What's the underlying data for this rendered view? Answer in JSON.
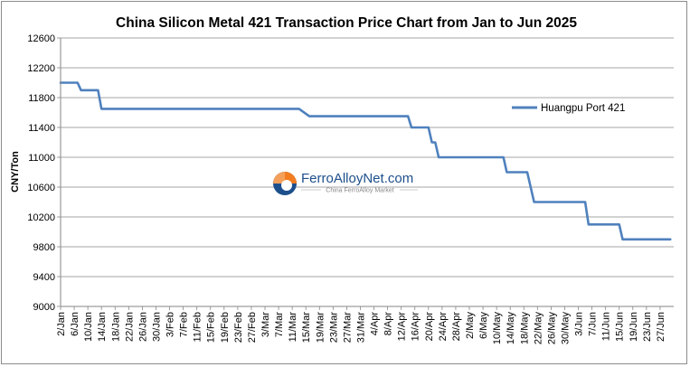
{
  "chart_data": {
    "type": "line",
    "title": "China Silicon Metal 421 Transaction Price Chart from Jan to Jun 2025",
    "ylabel": "CNY/Ton",
    "xlabel": "",
    "ylim": [
      9000,
      12600
    ],
    "yticks": [
      9000,
      9400,
      9800,
      10200,
      10600,
      11000,
      11400,
      11800,
      12200,
      12600
    ],
    "grid": "horizontal",
    "legend_position": "right",
    "x_tick_labels": [
      "2/Jan",
      "6/Jan",
      "10/Jan",
      "14/Jan",
      "18/Jan",
      "22/Jan",
      "26/Jan",
      "30/Jan",
      "3/Feb",
      "7/Feb",
      "11/Feb",
      "15/Feb",
      "19/Feb",
      "23/Feb",
      "27/Feb",
      "3/Mar",
      "7/Mar",
      "11/Mar",
      "15/Mar",
      "19/Mar",
      "23/Mar",
      "27/Mar",
      "31/Mar",
      "4/Apr",
      "8/Apr",
      "12/Apr",
      "16/Apr",
      "20/Apr",
      "24/Apr",
      "28/Apr",
      "2/May",
      "6/May",
      "10/May",
      "14/May",
      "18/May",
      "22/May",
      "26/May",
      "30/May",
      "3/Jun",
      "7/Jun",
      "11/Jun",
      "15/Jun",
      "19/Jun",
      "23/Jun",
      "27/Jun"
    ],
    "series": [
      {
        "name": "Huangpu Port 421",
        "color": "#4f81bd",
        "points": [
          {
            "x": "2025-01-02",
            "y": 12000
          },
          {
            "x": "2025-01-07",
            "y": 12000
          },
          {
            "x": "2025-01-08",
            "y": 11900
          },
          {
            "x": "2025-01-13",
            "y": 11900
          },
          {
            "x": "2025-01-14",
            "y": 11650
          },
          {
            "x": "2025-03-13",
            "y": 11650
          },
          {
            "x": "2025-03-16",
            "y": 11550
          },
          {
            "x": "2025-04-14",
            "y": 11550
          },
          {
            "x": "2025-04-15",
            "y": 11400
          },
          {
            "x": "2025-04-20",
            "y": 11400
          },
          {
            "x": "2025-04-21",
            "y": 11200
          },
          {
            "x": "2025-04-22",
            "y": 11200
          },
          {
            "x": "2025-04-23",
            "y": 11000
          },
          {
            "x": "2025-05-12",
            "y": 11000
          },
          {
            "x": "2025-05-13",
            "y": 10800
          },
          {
            "x": "2025-05-19",
            "y": 10800
          },
          {
            "x": "2025-05-21",
            "y": 10400
          },
          {
            "x": "2025-06-05",
            "y": 10400
          },
          {
            "x": "2025-06-06",
            "y": 10100
          },
          {
            "x": "2025-06-15",
            "y": 10100
          },
          {
            "x": "2025-06-16",
            "y": 9900
          },
          {
            "x": "2025-06-30",
            "y": 9900
          }
        ]
      }
    ]
  },
  "watermark": {
    "brand": "FerroAlloyNet.com",
    "tagline": "China FerroAlloy Market"
  }
}
